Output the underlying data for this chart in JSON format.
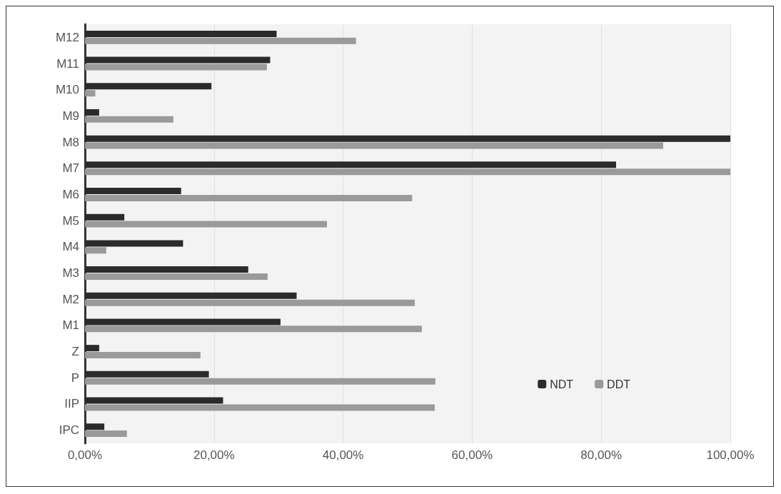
{
  "chart_data": {
    "type": "bar",
    "orientation": "horizontal",
    "categories": [
      "M12",
      "M11",
      "M10",
      "M9",
      "M8",
      "M7",
      "M6",
      "M5",
      "M4",
      "M3",
      "M2",
      "M1",
      "Z",
      "P",
      "IIP",
      "IPC"
    ],
    "series": [
      {
        "name": "NDT",
        "color": "#2b2b2b",
        "values": [
          29.7,
          28.7,
          19.6,
          2.2,
          100,
          82.3,
          14.9,
          6.1,
          15.2,
          25.3,
          32.8,
          30.3,
          2.2,
          19.2,
          21.4,
          3.0
        ]
      },
      {
        "name": "DDT",
        "color": "#9a9a9a",
        "values": [
          42,
          28.2,
          1.6,
          13.7,
          89.6,
          100,
          50.7,
          37.5,
          3.3,
          28.3,
          51.1,
          52.2,
          17.9,
          54.3,
          54.2,
          6.5
        ]
      }
    ],
    "xlim": [
      0,
      100
    ],
    "xticks": [
      {
        "value": 0,
        "label": "0,00%"
      },
      {
        "value": 20,
        "label": "20,00%"
      },
      {
        "value": 40,
        "label": "40,00%"
      },
      {
        "value": 60,
        "label": "60,00%"
      },
      {
        "value": 80,
        "label": "80,00%"
      },
      {
        "value": 100,
        "label": "100,00%"
      }
    ],
    "grid": "x",
    "legend": "bottom right"
  }
}
